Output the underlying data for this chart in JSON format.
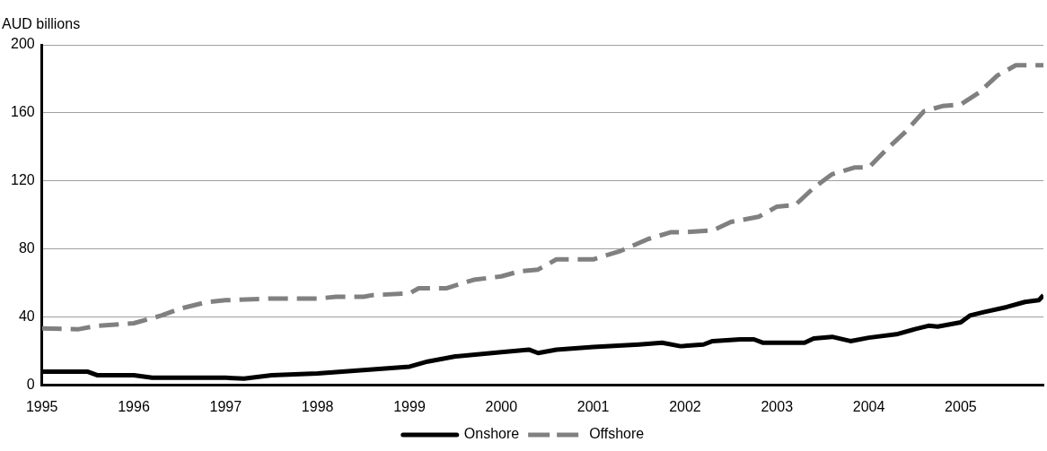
{
  "chart_data": {
    "type": "line",
    "ylabel": "AUD billions",
    "xlim": [
      1995,
      2005.9
    ],
    "xticks": [
      1995,
      1996,
      1997,
      1998,
      1999,
      2000,
      2001,
      2002,
      2003,
      2004,
      2005
    ],
    "ylim": [
      0,
      200
    ],
    "yticks": [
      0,
      40,
      80,
      120,
      160,
      200
    ],
    "grid": "y",
    "legend": "bottom",
    "marker": "none",
    "series": [
      {
        "name": "Onshore",
        "color": "#000000",
        "line_style": "solid",
        "x": [
          1995,
          1995.5,
          1995.6,
          1996,
          1996.2,
          1996.5,
          1997,
          1997.2,
          1997.5,
          1998,
          1998.5,
          1999,
          1999.2,
          1999.5,
          2000,
          2000.3,
          2000.4,
          2000.6,
          2001,
          2001.5,
          2001.75,
          2001.95,
          2002.2,
          2002.3,
          2002.6,
          2002.75,
          2002.85,
          2003,
          2003.3,
          2003.4,
          2003.6,
          2003.8,
          2004,
          2004.3,
          2004.5,
          2004.65,
          2004.75,
          2005,
          2005.1,
          2005.25,
          2005.5,
          2005.7,
          2005.85,
          2005.9
        ],
        "values": [
          8,
          8,
          6,
          6,
          4.5,
          4.5,
          4.5,
          4,
          6,
          7,
          9,
          11,
          14,
          17,
          19.5,
          21,
          19,
          21,
          22.5,
          24,
          25,
          23,
          24,
          26,
          27,
          27,
          25,
          25,
          25,
          27.5,
          28.5,
          26,
          28,
          30,
          33,
          35,
          34.5,
          37,
          41,
          43,
          46,
          49,
          50,
          53
        ]
      },
      {
        "name": "Offshore",
        "color": "#808080",
        "line_style": "dashed",
        "x": [
          1995,
          1995.4,
          1995.6,
          1996,
          1996.3,
          1996.5,
          1996.8,
          1997,
          1997.5,
          1998,
          1998.2,
          1998.5,
          1998.6,
          1999,
          1999.1,
          1999.4,
          1999.7,
          2000,
          2000.2,
          2000.4,
          2000.6,
          2000.8,
          2001,
          2001.3,
          2001.6,
          2001.85,
          2002,
          2002.3,
          2002.5,
          2002.8,
          2003,
          2003.2,
          2003.4,
          2003.6,
          2003.85,
          2004,
          2004.2,
          2004.4,
          2004.6,
          2004.8,
          2005,
          2005.2,
          2005.4,
          2005.6,
          2005.9
        ],
        "values": [
          33.5,
          33,
          35,
          36.5,
          41,
          45,
          49,
          50,
          51,
          51,
          52,
          52,
          53,
          54,
          57,
          57,
          62,
          64,
          67,
          68,
          74,
          74,
          74,
          79,
          86,
          90,
          90,
          91,
          96,
          99,
          105,
          106,
          116,
          124,
          128,
          128,
          139,
          149,
          161,
          164,
          165,
          172,
          182,
          188,
          188
        ]
      }
    ]
  }
}
